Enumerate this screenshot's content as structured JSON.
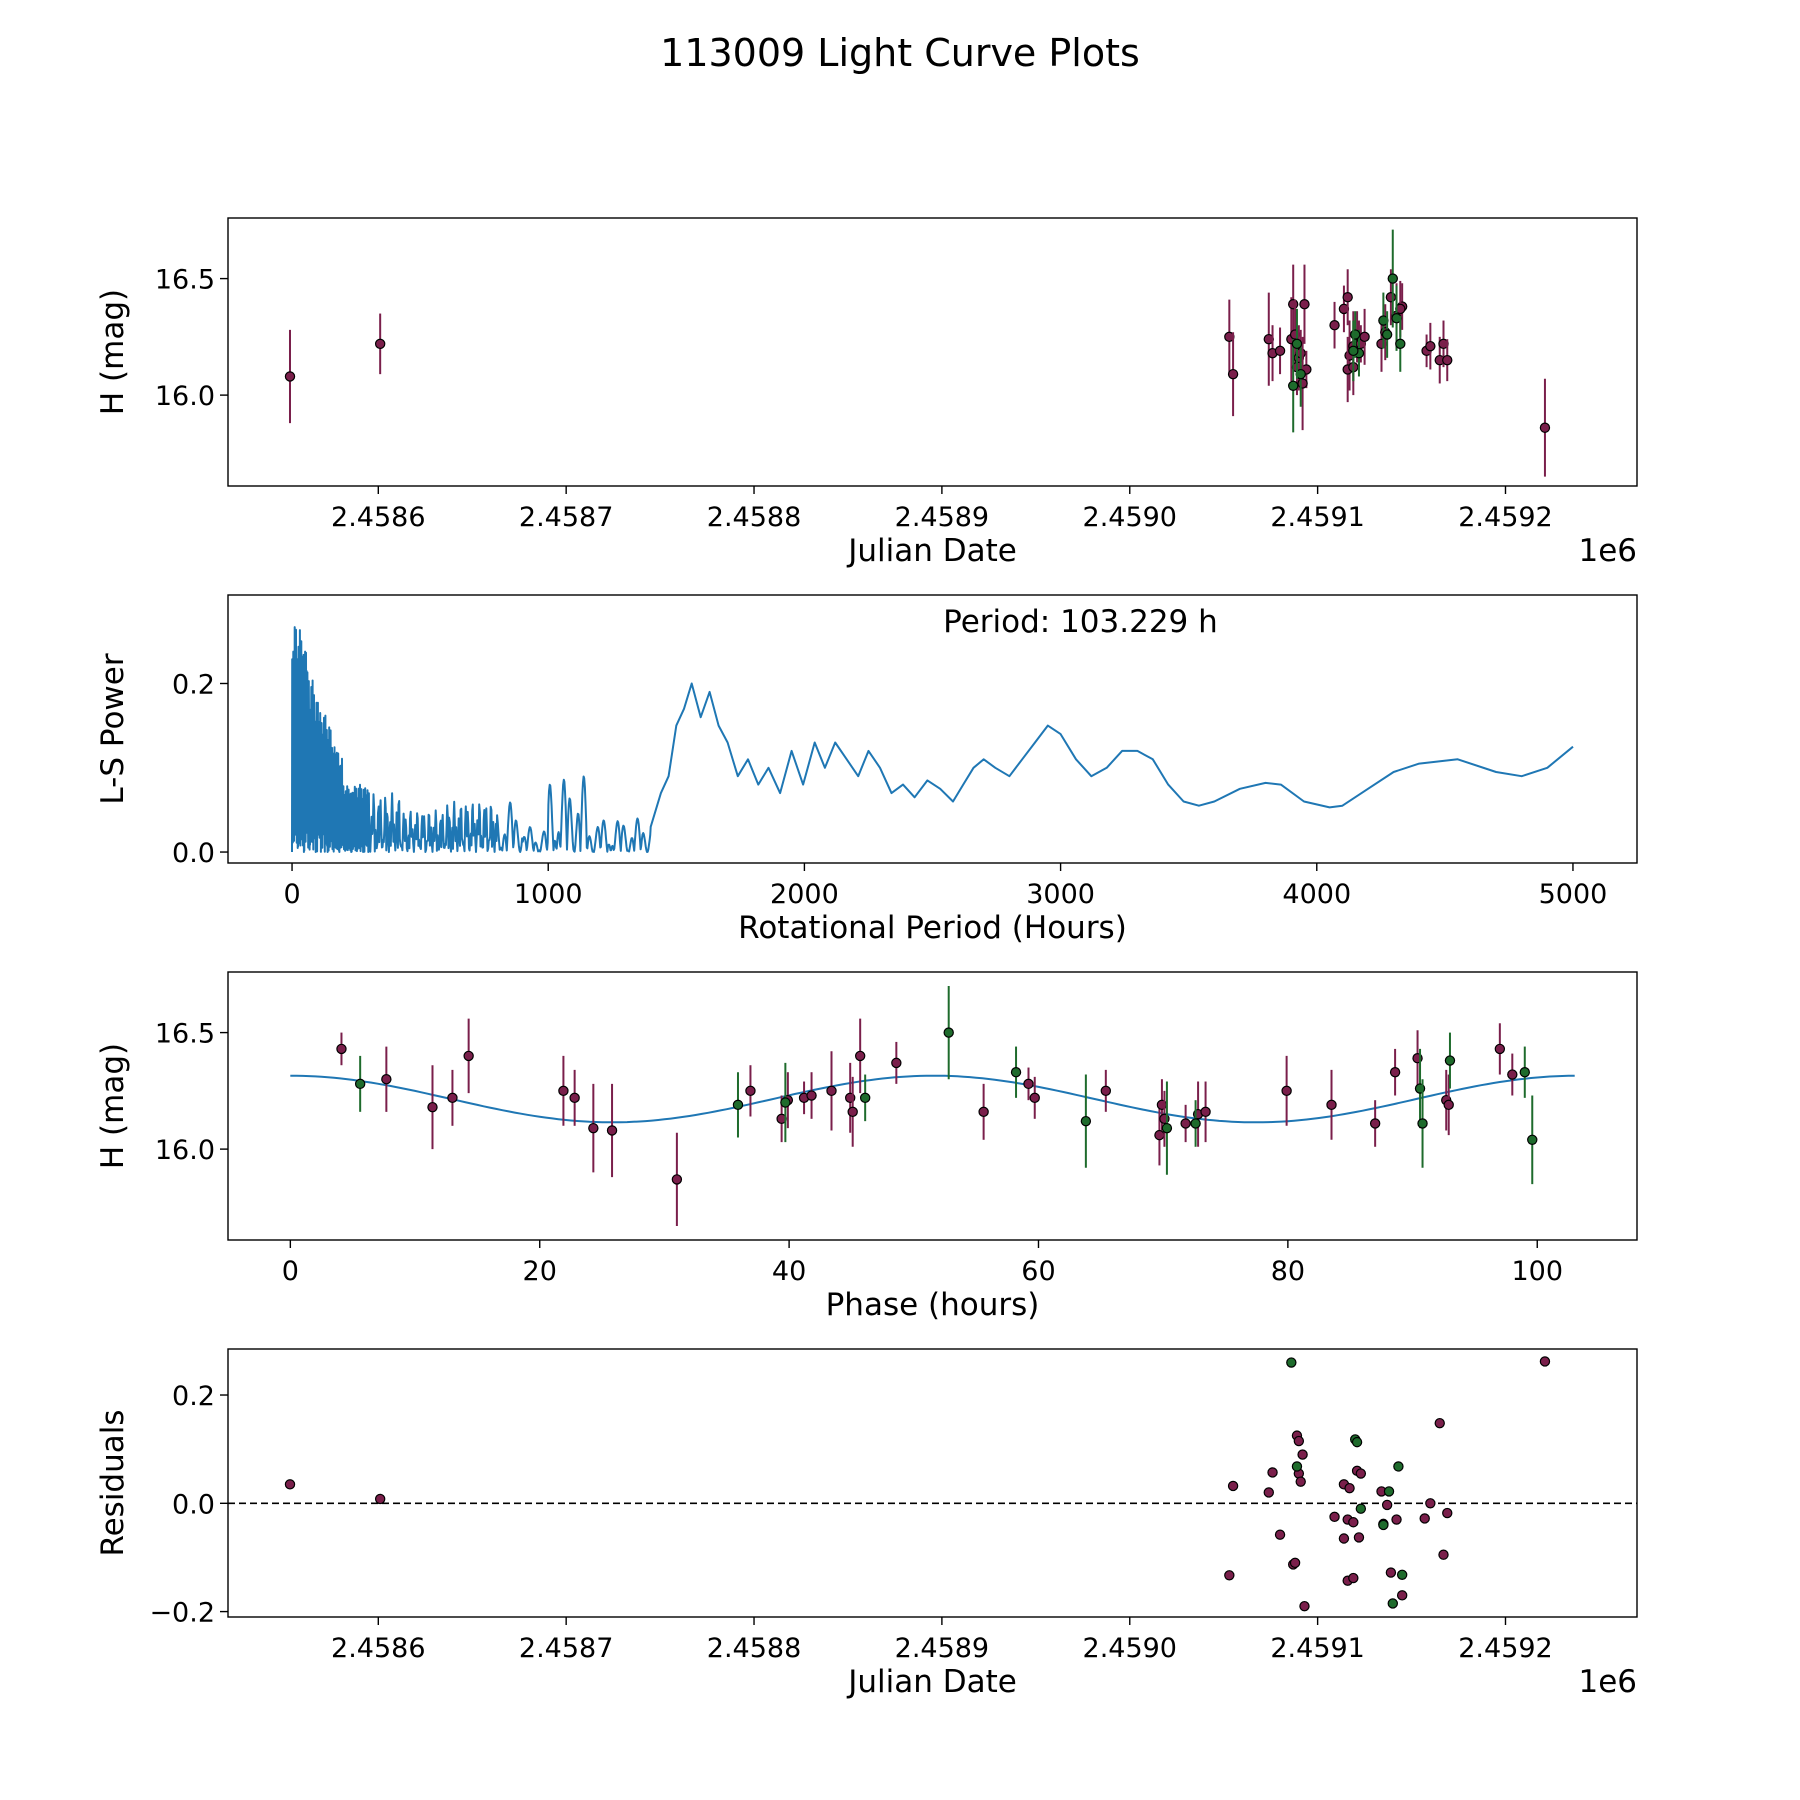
{
  "page_title": "113009 Light Curve Plots",
  "colors": {
    "red_band": "#7a1f4b",
    "green_band": "#1e6b2c",
    "fit_line": "#1f77b4",
    "zero_line": "#000000"
  },
  "chart_data": [
    {
      "id": "lightcurve",
      "type": "scatter",
      "title": "",
      "xlabel": "Julian Date",
      "ylabel": "H (mag)",
      "x_offset_label": "1e6",
      "xlim": [
        2.45852,
        2.45927
      ],
      "ylim": [
        15.61,
        16.76
      ],
      "xticks": [
        2.4586,
        2.4587,
        2.4588,
        2.4589,
        2.459,
        2.4591,
        2.4592
      ],
      "xtick_labels": [
        "2.4586",
        "2.4587",
        "2.4588",
        "2.4589",
        "2.4590",
        "2.4591",
        "2.4592"
      ],
      "yticks": [
        16.0,
        16.5
      ],
      "ytick_labels": [
        "16.0",
        "16.5"
      ],
      "series": [
        {
          "name": "red",
          "color": "#7a1f4b",
          "points": [
            [
              2.458553,
              16.08,
              0.2
            ],
            [
              2.458601,
              16.22,
              0.13
            ],
            [
              2.459053,
              16.25,
              0.16
            ],
            [
              2.459055,
              16.09,
              0.18
            ],
            [
              2.459074,
              16.24,
              0.2
            ],
            [
              2.459076,
              16.18,
              0.12
            ],
            [
              2.45908,
              16.19,
              0.1
            ],
            [
              2.459086,
              16.24,
              0.18
            ],
            [
              2.459087,
              16.39,
              0.17
            ],
            [
              2.459088,
              16.26,
              0.15
            ],
            [
              2.459089,
              16.12,
              0.12
            ],
            [
              2.45909,
              16.16,
              0.14
            ],
            [
              2.459091,
              16.18,
              0.1
            ],
            [
              2.459093,
              16.39,
              0.17
            ],
            [
              2.459094,
              16.11,
              0.08
            ],
            [
              2.459092,
              16.05,
              0.2
            ],
            [
              2.459109,
              16.3,
              0.1
            ],
            [
              2.459114,
              16.37,
              0.1
            ],
            [
              2.459116,
              16.42,
              0.12
            ],
            [
              2.459117,
              16.17,
              0.15
            ],
            [
              2.459116,
              16.11,
              0.14
            ],
            [
              2.459119,
              16.21,
              0.15
            ],
            [
              2.459121,
              16.25,
              0.11
            ],
            [
              2.459119,
              16.12,
              0.12
            ],
            [
              2.459122,
              16.22,
              0.1
            ],
            [
              2.459123,
              16.22,
              0.08
            ],
            [
              2.459125,
              16.25,
              0.12
            ],
            [
              2.459134,
              16.22,
              0.12
            ],
            [
              2.459136,
              16.27,
              0.12
            ],
            [
              2.459139,
              16.42,
              0.12
            ],
            [
              2.459142,
              16.34,
              0.14
            ],
            [
              2.459145,
              16.38,
              0.1
            ],
            [
              2.459144,
              16.37,
              0.12
            ],
            [
              2.459158,
              16.19,
              0.07
            ],
            [
              2.45916,
              16.21,
              0.1
            ],
            [
              2.459165,
              16.15,
              0.1
            ],
            [
              2.459167,
              16.22,
              0.1
            ],
            [
              2.459169,
              16.15,
              0.09
            ],
            [
              2.459221,
              15.86,
              0.21
            ]
          ]
        },
        {
          "name": "green",
          "color": "#1e6b2c",
          "points": [
            [
              2.459087,
              16.04,
              0.2
            ],
            [
              2.459091,
              16.09,
              0.14
            ],
            [
              2.459089,
              16.22,
              0.15
            ],
            [
              2.459122,
              16.18,
              0.1
            ],
            [
              2.45912,
              16.26,
              0.1
            ],
            [
              2.459135,
              16.32,
              0.12
            ],
            [
              2.459137,
              16.26,
              0.1
            ],
            [
              2.45914,
              16.5,
              0.21
            ],
            [
              2.459142,
              16.33,
              0.14
            ],
            [
              2.459144,
              16.22,
              0.12
            ],
            [
              2.459119,
              16.19,
              0.13
            ]
          ]
        }
      ]
    },
    {
      "id": "periodogram",
      "type": "line",
      "title": "",
      "xlabel": "Rotational Period (Hours)",
      "ylabel": "L-S Power",
      "annotation": "Period: 103.229 h",
      "xlim": [
        -250,
        5250
      ],
      "ylim": [
        -0.013,
        0.305
      ],
      "xticks": [
        0,
        1000,
        2000,
        3000,
        4000,
        5000
      ],
      "xtick_labels": [
        "0",
        "1000",
        "2000",
        "3000",
        "4000",
        "5000"
      ],
      "yticks": [
        0.0,
        0.2
      ],
      "ytick_labels": [
        "0.0",
        "0.2"
      ],
      "series": [
        {
          "name": "power",
          "color": "#1f77b4",
          "x": [
            1400,
            1440,
            1470,
            1500,
            1530,
            1560,
            1595,
            1630,
            1665,
            1700,
            1740,
            1780,
            1820,
            1860,
            1905,
            1950,
            1995,
            2040,
            2080,
            2120,
            2165,
            2210,
            2250,
            2295,
            2340,
            2385,
            2430,
            2480,
            2530,
            2580,
            2620,
            2660,
            2700,
            2745,
            2800,
            2850,
            2900,
            2950,
            3000,
            3060,
            3120,
            3180,
            3240,
            3300,
            3360,
            3420,
            3480,
            3540,
            3600,
            3700,
            3800,
            3860,
            3950,
            4050,
            4100,
            4200,
            4300,
            4400,
            4550,
            4700,
            4800,
            4900,
            5000
          ],
          "y": [
            0.03,
            0.07,
            0.09,
            0.15,
            0.17,
            0.2,
            0.16,
            0.19,
            0.15,
            0.13,
            0.09,
            0.11,
            0.08,
            0.1,
            0.07,
            0.12,
            0.08,
            0.13,
            0.1,
            0.13,
            0.11,
            0.09,
            0.12,
            0.1,
            0.07,
            0.08,
            0.065,
            0.085,
            0.075,
            0.06,
            0.08,
            0.1,
            0.11,
            0.1,
            0.09,
            0.11,
            0.13,
            0.15,
            0.14,
            0.11,
            0.09,
            0.1,
            0.12,
            0.12,
            0.11,
            0.08,
            0.06,
            0.055,
            0.06,
            0.075,
            0.082,
            0.08,
            0.06,
            0.053,
            0.055,
            0.075,
            0.095,
            0.105,
            0.11,
            0.095,
            0.09,
            0.1,
            0.125
          ]
        }
      ]
    },
    {
      "id": "phased",
      "type": "scatter",
      "title": "",
      "xlabel": "Phase (hours)",
      "ylabel": "H (mag)",
      "xlim": [
        -5,
        108
      ],
      "ylim": [
        15.61,
        16.76
      ],
      "xticks": [
        0,
        20,
        40,
        60,
        80,
        100
      ],
      "xtick_labels": [
        "0",
        "20",
        "40",
        "60",
        "80",
        "100"
      ],
      "yticks": [
        16.0,
        16.5
      ],
      "ytick_labels": [
        "16.0",
        "16.5"
      ],
      "fit": {
        "mean": 16.215,
        "amplitude": 0.1,
        "period": 51.6,
        "peak_phase": 0,
        "x_max": 103.229,
        "color": "#1f77b4"
      },
      "series": [
        {
          "name": "red",
          "color": "#7a1f4b",
          "points": [
            [
              4.1,
              16.43,
              0.07
            ],
            [
              7.7,
              16.3,
              0.14
            ],
            [
              11.4,
              16.18,
              0.18
            ],
            [
              13.0,
              16.22,
              0.12
            ],
            [
              14.3,
              16.4,
              0.16
            ],
            [
              21.9,
              16.25,
              0.15
            ],
            [
              22.8,
              16.22,
              0.12
            ],
            [
              24.3,
              16.09,
              0.19
            ],
            [
              25.8,
              16.08,
              0.2
            ],
            [
              31.0,
              15.87,
              0.2
            ],
            [
              36.9,
              16.25,
              0.11
            ],
            [
              39.4,
              16.13,
              0.1
            ],
            [
              39.9,
              16.21,
              0.12
            ],
            [
              41.2,
              16.22,
              0.07
            ],
            [
              41.8,
              16.23,
              0.1
            ],
            [
              43.4,
              16.25,
              0.17
            ],
            [
              44.9,
              16.22,
              0.15
            ],
            [
              45.1,
              16.16,
              0.15
            ],
            [
              45.7,
              16.4,
              0.16
            ],
            [
              48.6,
              16.37,
              0.09
            ],
            [
              55.6,
              16.16,
              0.12
            ],
            [
              59.2,
              16.28,
              0.07
            ],
            [
              59.7,
              16.22,
              0.09
            ],
            [
              65.4,
              16.25,
              0.09
            ],
            [
              69.7,
              16.06,
              0.13
            ],
            [
              69.9,
              16.19,
              0.11
            ],
            [
              70.1,
              16.13,
              0.12
            ],
            [
              71.8,
              16.11,
              0.08
            ],
            [
              72.8,
              16.15,
              0.14
            ],
            [
              73.4,
              16.16,
              0.13
            ],
            [
              79.9,
              16.25,
              0.15
            ],
            [
              83.5,
              16.19,
              0.15
            ],
            [
              87.0,
              16.11,
              0.1
            ],
            [
              88.6,
              16.33,
              0.1
            ],
            [
              90.4,
              16.39,
              0.12
            ],
            [
              92.7,
              16.21,
              0.13
            ],
            [
              92.9,
              16.19,
              0.13
            ],
            [
              97.0,
              16.43,
              0.11
            ],
            [
              98.0,
              16.32,
              0.09
            ]
          ]
        },
        {
          "name": "green",
          "color": "#1e6b2c",
          "points": [
            [
              5.6,
              16.28,
              0.12
            ],
            [
              35.9,
              16.19,
              0.14
            ],
            [
              39.7,
              16.2,
              0.17
            ],
            [
              46.1,
              16.22,
              0.1
            ],
            [
              52.8,
              16.5,
              0.2
            ],
            [
              58.2,
              16.33,
              0.11
            ],
            [
              63.8,
              16.12,
              0.2
            ],
            [
              70.3,
              16.09,
              0.2
            ],
            [
              72.6,
              16.11,
              0.1
            ],
            [
              90.6,
              16.26,
              0.17
            ],
            [
              90.8,
              16.11,
              0.19
            ],
            [
              93.0,
              16.38,
              0.12
            ],
            [
              99.0,
              16.33,
              0.11
            ],
            [
              99.6,
              16.04,
              0.19
            ]
          ]
        }
      ]
    },
    {
      "id": "residuals",
      "type": "scatter",
      "title": "",
      "xlabel": "Julian Date",
      "ylabel": "Residuals",
      "x_offset_label": "1e6",
      "xlim": [
        2.45852,
        2.45927
      ],
      "ylim": [
        -0.21,
        0.285
      ],
      "xticks": [
        2.4586,
        2.4587,
        2.4588,
        2.4589,
        2.459,
        2.4591,
        2.4592
      ],
      "xtick_labels": [
        "2.4586",
        "2.4587",
        "2.4588",
        "2.4589",
        "2.4590",
        "2.4591",
        "2.4592"
      ],
      "yticks": [
        -0.2,
        0.0,
        0.2
      ],
      "ytick_labels": [
        "−0.2",
        "0.0",
        "0.2"
      ],
      "reference_line": 0.0,
      "series": [
        {
          "name": "red",
          "color": "#7a1f4b",
          "points": [
            [
              2.458553,
              0.035
            ],
            [
              2.458601,
              0.008
            ],
            [
              2.459053,
              -0.133
            ],
            [
              2.459055,
              0.032
            ],
            [
              2.459074,
              0.02
            ],
            [
              2.459076,
              0.057
            ],
            [
              2.45908,
              -0.058
            ],
            [
              2.459087,
              -0.113
            ],
            [
              2.459088,
              -0.11
            ],
            [
              2.459089,
              0.125
            ],
            [
              2.45909,
              0.115
            ],
            [
              2.45909,
              0.055
            ],
            [
              2.459091,
              0.04
            ],
            [
              2.459092,
              0.09
            ],
            [
              2.459093,
              -0.19
            ],
            [
              2.459109,
              -0.025
            ],
            [
              2.459114,
              0.035
            ],
            [
              2.459114,
              -0.065
            ],
            [
              2.459116,
              -0.03
            ],
            [
              2.459116,
              -0.143
            ],
            [
              2.459117,
              0.028
            ],
            [
              2.459119,
              -0.035
            ],
            [
              2.459119,
              -0.138
            ],
            [
              2.459121,
              0.06
            ],
            [
              2.459122,
              -0.063
            ],
            [
              2.459123,
              0.055
            ],
            [
              2.459134,
              0.022
            ],
            [
              2.459135,
              -0.038
            ],
            [
              2.459137,
              -0.003
            ],
            [
              2.459139,
              -0.128
            ],
            [
              2.459142,
              -0.03
            ],
            [
              2.459145,
              -0.17
            ],
            [
              2.459157,
              -0.028
            ],
            [
              2.45916,
              0.0
            ],
            [
              2.459165,
              0.148
            ],
            [
              2.459167,
              -0.095
            ],
            [
              2.459169,
              -0.018
            ],
            [
              2.459221,
              0.262
            ]
          ]
        },
        {
          "name": "green",
          "color": "#1e6b2c",
          "points": [
            [
              2.459086,
              0.26
            ],
            [
              2.459089,
              0.068
            ],
            [
              2.45912,
              0.118
            ],
            [
              2.459121,
              0.113
            ],
            [
              2.459123,
              -0.01
            ],
            [
              2.459135,
              -0.04
            ],
            [
              2.459138,
              0.022
            ],
            [
              2.45914,
              -0.185
            ],
            [
              2.459143,
              0.068
            ],
            [
              2.459145,
              -0.132
            ]
          ]
        }
      ]
    }
  ]
}
